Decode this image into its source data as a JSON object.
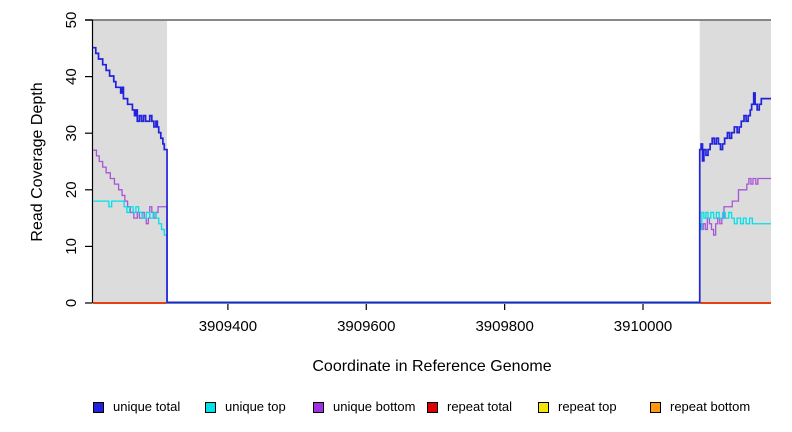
{
  "window": {
    "kind": "static-plot-image"
  },
  "chart_data": {
    "type": "line",
    "subtype": "step-coverage",
    "title": "",
    "xlabel": "Coordinate in Reference Genome",
    "ylabel": "Read Coverage Depth",
    "xlim": [
      3909205,
      3910185
    ],
    "ylim": [
      0,
      50
    ],
    "xticks": [
      3909400,
      3909600,
      3909800,
      3910000
    ],
    "xtick_labels": [
      "3909400",
      "3909600",
      "3909800",
      "3910000"
    ],
    "yticks": [
      0,
      10,
      20,
      30,
      40,
      50
    ],
    "ytick_labels": [
      "0",
      "10",
      "20",
      "30",
      "40",
      "50"
    ],
    "grid": false,
    "region_fill": "#dcdcdc",
    "top_rule_color": "#787878",
    "axis_color": "#000000",
    "shaded_regions": [
      {
        "name": "repeat-region-left",
        "x0": 3909205,
        "x1": 3909312
      },
      {
        "name": "repeat-region-right",
        "x0": 3910082,
        "x1": 3910185
      }
    ],
    "series": [
      {
        "name": "unique total",
        "color": "#2222dd",
        "width": 1.7,
        "points": [
          [
            3909205,
            45
          ],
          [
            3909209,
            44
          ],
          [
            3909213,
            43
          ],
          [
            3909217,
            43
          ],
          [
            3909219,
            42
          ],
          [
            3909224,
            41
          ],
          [
            3909229,
            40
          ],
          [
            3909235,
            39
          ],
          [
            3909238,
            38
          ],
          [
            3909243,
            38
          ],
          [
            3909245,
            37
          ],
          [
            3909247,
            38
          ],
          [
            3909249,
            36
          ],
          [
            3909252,
            36
          ],
          [
            3909255,
            35
          ],
          [
            3909262,
            34
          ],
          [
            3909265,
            33
          ],
          [
            3909267,
            34
          ],
          [
            3909269,
            32
          ],
          [
            3909272,
            33
          ],
          [
            3909275,
            32
          ],
          [
            3909278,
            33
          ],
          [
            3909281,
            32
          ],
          [
            3909284,
            32
          ],
          [
            3909287,
            33
          ],
          [
            3909290,
            32
          ],
          [
            3909293,
            31
          ],
          [
            3909296,
            32
          ],
          [
            3909298,
            31
          ],
          [
            3909300,
            30
          ],
          [
            3909303,
            29
          ],
          [
            3909306,
            28
          ],
          [
            3909308,
            27
          ],
          [
            3909312,
            0
          ],
          [
            3910082,
            27
          ],
          [
            3910084,
            28
          ],
          [
            3910086,
            25
          ],
          [
            3910088,
            27
          ],
          [
            3910091,
            26
          ],
          [
            3910094,
            27
          ],
          [
            3910097,
            28
          ],
          [
            3910100,
            29
          ],
          [
            3910103,
            28
          ],
          [
            3910106,
            29
          ],
          [
            3910109,
            28
          ],
          [
            3910112,
            27
          ],
          [
            3910115,
            28
          ],
          [
            3910118,
            29
          ],
          [
            3910122,
            30
          ],
          [
            3910125,
            29
          ],
          [
            3910128,
            30
          ],
          [
            3910132,
            31
          ],
          [
            3910136,
            30
          ],
          [
            3910139,
            31
          ],
          [
            3910142,
            32
          ],
          [
            3910146,
            33
          ],
          [
            3910149,
            32
          ],
          [
            3910152,
            33
          ],
          [
            3910155,
            34
          ],
          [
            3910157,
            35
          ],
          [
            3910160,
            37
          ],
          [
            3910162,
            35
          ],
          [
            3910165,
            34
          ],
          [
            3910168,
            35
          ],
          [
            3910171,
            36
          ],
          [
            3910185,
            36
          ]
        ]
      },
      {
        "name": "unique top",
        "color": "#00e1e8",
        "width": 1.3,
        "points": [
          [
            3909205,
            18
          ],
          [
            3909228,
            17
          ],
          [
            3909232,
            18
          ],
          [
            3909250,
            17
          ],
          [
            3909254,
            16
          ],
          [
            3909258,
            17
          ],
          [
            3909263,
            16
          ],
          [
            3909267,
            17
          ],
          [
            3909271,
            16
          ],
          [
            3909276,
            15
          ],
          [
            3909282,
            16
          ],
          [
            3909287,
            15
          ],
          [
            3909292,
            16
          ],
          [
            3909296,
            15
          ],
          [
            3909300,
            14
          ],
          [
            3909304,
            13
          ],
          [
            3909308,
            12
          ],
          [
            3909312,
            0
          ],
          [
            3910082,
            13
          ],
          [
            3910085,
            16
          ],
          [
            3910088,
            15
          ],
          [
            3910091,
            16
          ],
          [
            3910094,
            15
          ],
          [
            3910098,
            16
          ],
          [
            3910102,
            15
          ],
          [
            3910106,
            16
          ],
          [
            3910110,
            15
          ],
          [
            3910115,
            16
          ],
          [
            3910119,
            15
          ],
          [
            3910124,
            16
          ],
          [
            3910128,
            15
          ],
          [
            3910132,
            14
          ],
          [
            3910136,
            15
          ],
          [
            3910141,
            14
          ],
          [
            3910145,
            15
          ],
          [
            3910149,
            14
          ],
          [
            3910154,
            15
          ],
          [
            3910158,
            14
          ],
          [
            3910185,
            14
          ]
        ]
      },
      {
        "name": "unique bottom",
        "color": "#a855d6",
        "width": 1.3,
        "points": [
          [
            3909205,
            27
          ],
          [
            3909210,
            26
          ],
          [
            3909214,
            25
          ],
          [
            3909219,
            24
          ],
          [
            3909224,
            23
          ],
          [
            3909230,
            22
          ],
          [
            3909236,
            21
          ],
          [
            3909242,
            20
          ],
          [
            3909247,
            19
          ],
          [
            3909251,
            18
          ],
          [
            3909255,
            17
          ],
          [
            3909259,
            16
          ],
          [
            3909264,
            15
          ],
          [
            3909269,
            16
          ],
          [
            3909272,
            15
          ],
          [
            3909276,
            16
          ],
          [
            3909279,
            15
          ],
          [
            3909282,
            14
          ],
          [
            3909285,
            15
          ],
          [
            3909287,
            17
          ],
          [
            3909290,
            16
          ],
          [
            3909293,
            15
          ],
          [
            3909296,
            16
          ],
          [
            3909299,
            17
          ],
          [
            3909312,
            0
          ],
          [
            3910082,
            14
          ],
          [
            3910084,
            13
          ],
          [
            3910087,
            14
          ],
          [
            3910090,
            13
          ],
          [
            3910093,
            15
          ],
          [
            3910096,
            14
          ],
          [
            3910099,
            13
          ],
          [
            3910102,
            12
          ],
          [
            3910105,
            14
          ],
          [
            3910108,
            15
          ],
          [
            3910111,
            14
          ],
          [
            3910114,
            15
          ],
          [
            3910117,
            17
          ],
          [
            3910125,
            17
          ],
          [
            3910129,
            18
          ],
          [
            3910135,
            18
          ],
          [
            3910138,
            20
          ],
          [
            3910146,
            20
          ],
          [
            3910150,
            21
          ],
          [
            3910153,
            22
          ],
          [
            3910156,
            21
          ],
          [
            3910159,
            22
          ],
          [
            3910163,
            21
          ],
          [
            3910166,
            22
          ],
          [
            3910185,
            22
          ]
        ]
      },
      {
        "name": "repeat total",
        "color": "#dd0000",
        "width": 1.3,
        "points": [
          [
            3909205,
            0
          ],
          [
            3910185,
            0
          ]
        ]
      },
      {
        "name": "repeat top",
        "color": "#f2e50c",
        "width": 1.3,
        "points": [
          [
            3909205,
            0
          ],
          [
            3910185,
            0
          ]
        ]
      },
      {
        "name": "repeat bottom",
        "color": "#ff9614",
        "width": 1.8,
        "points": [
          [
            3909205,
            0
          ],
          [
            3910185,
            0
          ]
        ]
      }
    ],
    "legend": {
      "position": "bottom",
      "entries": [
        {
          "label": "unique total",
          "color": "#2222dd"
        },
        {
          "label": "unique top",
          "color": "#00e1e8"
        },
        {
          "label": "unique bottom",
          "color": "#a030e0"
        },
        {
          "label": "repeat total",
          "color": "#dd0000"
        },
        {
          "label": "repeat top",
          "color": "#f2e50c"
        },
        {
          "label": "repeat bottom",
          "color": "#ff9614"
        }
      ]
    }
  }
}
